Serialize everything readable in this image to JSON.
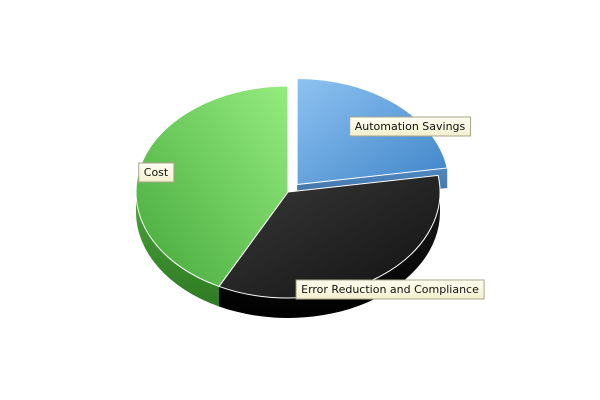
{
  "chart_data": {
    "type": "pie",
    "style": "3d-exploded",
    "title": "",
    "slices": [
      {
        "label": "Automation Savings",
        "value": 22.5,
        "color": "#4a8fd0",
        "exploded": true
      },
      {
        "label": "Error Reduction and Compliance",
        "value": 35,
        "color": "#262626",
        "exploded": false
      },
      {
        "label": "Cost",
        "value": 42.5,
        "color": "#55bb44",
        "exploded": false
      }
    ],
    "legend": "none",
    "label_style": "callout boxes on slices"
  }
}
